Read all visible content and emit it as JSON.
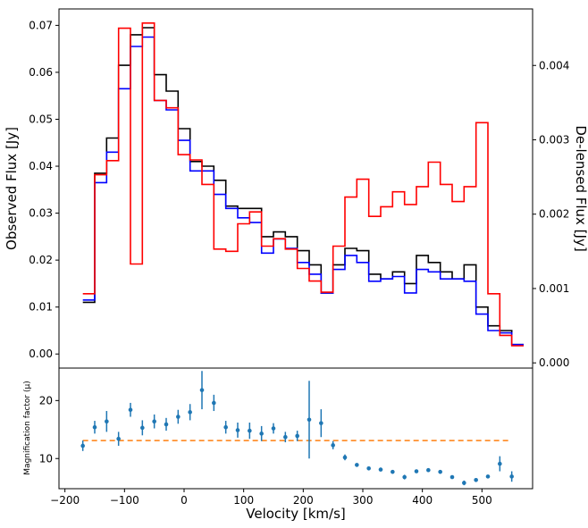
{
  "chart_data": {
    "type": "step",
    "x_axis": {
      "label": "Velocity [km/s]",
      "range": [
        -210,
        585
      ],
      "ticks": [
        -200,
        -100,
        0,
        100,
        200,
        300,
        400,
        500
      ],
      "tick_labels": [
        "−200",
        "−100",
        "0",
        "100",
        "200",
        "300",
        "400",
        "500"
      ]
    },
    "top_panel": {
      "y_left": {
        "label": "Observed Flux [Jy]",
        "range": [
          -0.003,
          0.0735
        ],
        "ticks": [
          0.0,
          0.01,
          0.02,
          0.03,
          0.04,
          0.05,
          0.06,
          0.07
        ],
        "tick_labels": [
          "0.00",
          "0.01",
          "0.02",
          "0.03",
          "0.04",
          "0.05",
          "0.06",
          "0.07"
        ]
      },
      "y_right": {
        "label": "De-lensed Flux [Jy]",
        "label_color": "#ff0000",
        "range": [
          -7e-05,
          0.00476
        ],
        "ticks": [
          0.0,
          0.001,
          0.002,
          0.003,
          0.004
        ],
        "tick_labels": [
          "0.000",
          "0.001",
          "0.002",
          "0.003",
          "0.004"
        ]
      },
      "bin_edges": [
        -170,
        -150,
        -130,
        -110,
        -90,
        -70,
        -50,
        -30,
        -10,
        10,
        30,
        50,
        70,
        90,
        110,
        130,
        150,
        170,
        190,
        210,
        230,
        250,
        270,
        290,
        310,
        330,
        350,
        370,
        390,
        410,
        430,
        450,
        470,
        490,
        510,
        530,
        550
      ],
      "series": [
        {
          "color": "#000000",
          "axis": "left",
          "values": [
            0.011,
            0.0385,
            0.046,
            0.0615,
            0.068,
            0.0695,
            0.0595,
            0.056,
            0.048,
            0.041,
            0.04,
            0.037,
            0.0315,
            0.031,
            0.031,
            0.025,
            0.026,
            0.025,
            0.022,
            0.019,
            0.013,
            0.019,
            0.0225,
            0.022,
            0.017,
            0.016,
            0.0175,
            0.015,
            0.021,
            0.0195,
            0.0175,
            0.016,
            0.019,
            0.01,
            0.006,
            0.005,
            0.002
          ]
        },
        {
          "color": "#0000ff",
          "axis": "left",
          "values": [
            0.0115,
            0.0365,
            0.043,
            0.0565,
            0.0655,
            0.0675,
            0.054,
            0.052,
            0.0455,
            0.039,
            0.039,
            0.034,
            0.031,
            0.029,
            0.028,
            0.0215,
            0.0245,
            0.0225,
            0.0195,
            0.017,
            0.013,
            0.018,
            0.021,
            0.0195,
            0.0155,
            0.016,
            0.0165,
            0.013,
            0.018,
            0.0175,
            0.016,
            0.016,
            0.0155,
            0.0085,
            0.005,
            0.0045,
            0.002
          ]
        },
        {
          "color": "#ff0000",
          "axis": "right",
          "values": [
            0.00093,
            0.00253,
            0.00272,
            0.0045,
            0.00133,
            0.00457,
            0.00353,
            0.00343,
            0.0028,
            0.00273,
            0.0024,
            0.00153,
            0.0015,
            0.00187,
            0.00203,
            0.00157,
            0.00167,
            0.00153,
            0.00127,
            0.0011,
            0.00095,
            0.00157,
            0.00223,
            0.00247,
            0.00197,
            0.0021,
            0.0023,
            0.00213,
            0.00237,
            0.0027,
            0.0024,
            0.00217,
            0.00237,
            0.00323,
            0.00093,
            0.00037,
            0.00023
          ]
        }
      ]
    },
    "bottom_panel": {
      "y_label": "Magnification factor (μ)",
      "y_range": [
        4.8,
        25.6
      ],
      "ticks": [
        10,
        20
      ],
      "tick_labels": [
        "10",
        "20"
      ],
      "points": {
        "color": "#1f77b4",
        "x": [
          -170,
          -150,
          -130,
          -110,
          -90,
          -70,
          -50,
          -30,
          -10,
          10,
          30,
          50,
          70,
          90,
          110,
          130,
          150,
          170,
          190,
          210,
          230,
          250,
          270,
          290,
          310,
          330,
          350,
          370,
          390,
          410,
          430,
          450,
          470,
          490,
          510,
          530,
          550
        ],
        "y": [
          12.2,
          15.4,
          16.4,
          13.4,
          18.4,
          15.3,
          16.4,
          15.9,
          17.2,
          18.0,
          21.8,
          19.6,
          15.4,
          14.9,
          14.8,
          14.3,
          15.2,
          13.7,
          13.9,
          16.7,
          16.1,
          12.3,
          10.2,
          8.9,
          8.3,
          8.1,
          7.7,
          6.8,
          7.8,
          8.0,
          7.7,
          6.8,
          5.8,
          6.3,
          6.9,
          9.1,
          6.9
        ],
        "yerr": [
          0.9,
          1.1,
          1.8,
          1.2,
          1.2,
          1.3,
          1.2,
          1.1,
          1.2,
          1.4,
          3.3,
          1.4,
          1.1,
          1.3,
          1.4,
          1.3,
          0.9,
          0.9,
          0.9,
          6.7,
          2.4,
          0.7,
          0.5,
          0.3,
          0.3,
          0.3,
          0.3,
          0.4,
          0.3,
          0.3,
          0.3,
          0.3,
          0.4,
          0.3,
          0.3,
          1.3,
          0.9
        ]
      },
      "reference_line": {
        "color": "#ff7f0e",
        "style": "dashed",
        "y": 13.1,
        "x_range": [
          -170,
          550
        ]
      }
    }
  }
}
